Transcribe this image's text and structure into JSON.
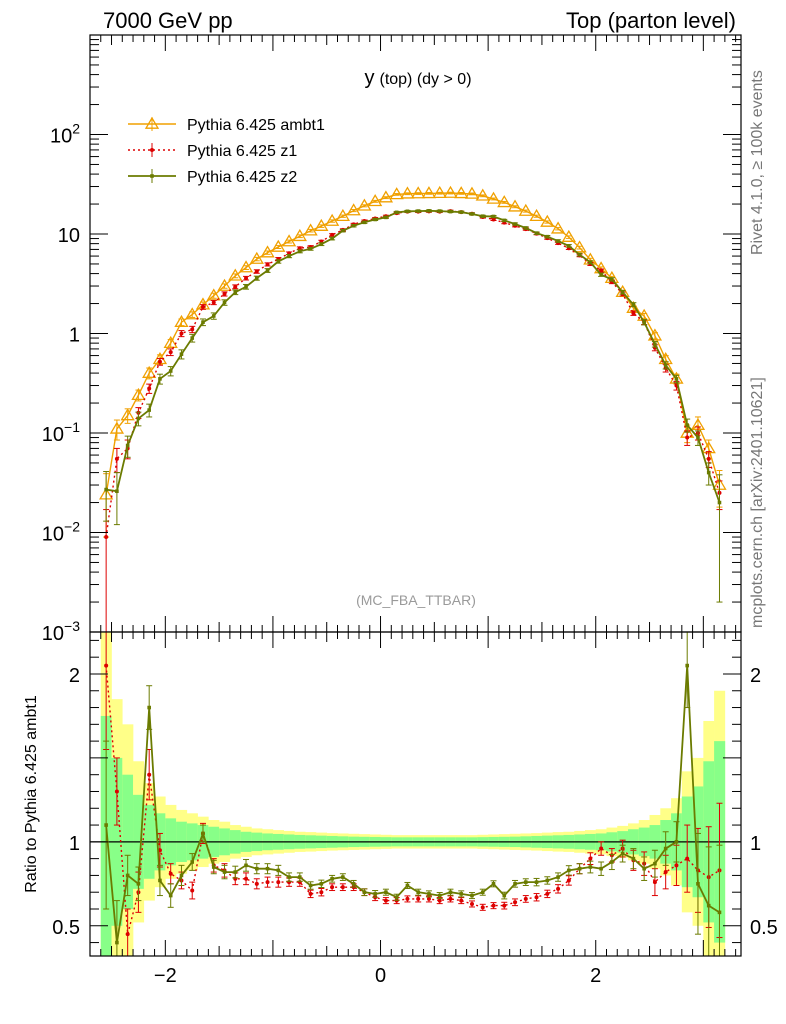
{
  "header": {
    "left": "7000 GeV pp",
    "right": "Top (parton level)"
  },
  "side": {
    "rivet": "Rivet 4.1.0, ≥ 100k events",
    "mcplots": "mcplots.cern.ch [arXiv:2401.10621]"
  },
  "colors": {
    "ambt1": "#f0a000",
    "z1": "#dd0000",
    "z2": "#6b7b00",
    "band_outer": "#ffff88",
    "band_inner": "#88ff88"
  },
  "chart_data": [
    {
      "type": "line",
      "panel": "main",
      "title": "y (top) (dy > 0)",
      "title_main": "y",
      "title_sub": "(top) (dy > 0)",
      "watermark": "(MC_FBA_TTBAR)",
      "xlabel": "",
      "ylabel": "",
      "yscale": "log",
      "xlim": [
        -2.7,
        3.35
      ],
      "ylim": [
        0.001,
        1000
      ],
      "yticks": [
        {
          "value": 0.001,
          "base": "10",
          "exp": "−3"
        },
        {
          "value": 0.01,
          "base": "10",
          "exp": "−2"
        },
        {
          "value": 0.1,
          "base": "10",
          "exp": "−1"
        },
        {
          "value": 1,
          "base": "1",
          "exp": ""
        },
        {
          "value": 10,
          "base": "10",
          "exp": ""
        },
        {
          "value": 100,
          "base": "10",
          "exp": "2"
        }
      ],
      "legend": [
        "Pythia 6.425 ambt1",
        "Pythia 6.425 z1",
        "Pythia 6.425 z2"
      ],
      "legend_position": "top-left",
      "x": [
        -2.55,
        -2.45,
        -2.35,
        -2.25,
        -2.15,
        -2.05,
        -1.95,
        -1.85,
        -1.75,
        -1.65,
        -1.55,
        -1.45,
        -1.35,
        -1.25,
        -1.15,
        -1.05,
        -0.95,
        -0.85,
        -0.75,
        -0.65,
        -0.55,
        -0.45,
        -0.35,
        -0.25,
        -0.15,
        -0.05,
        0.05,
        0.15,
        0.25,
        0.35,
        0.45,
        0.55,
        0.65,
        0.75,
        0.85,
        0.95,
        1.05,
        1.15,
        1.25,
        1.35,
        1.45,
        1.55,
        1.65,
        1.75,
        1.85,
        1.95,
        2.05,
        2.15,
        2.25,
        2.35,
        2.45,
        2.55,
        2.65,
        2.75,
        2.85,
        2.95,
        3.05,
        3.15
      ],
      "series": [
        {
          "name": "Pythia 6.425 ambt1",
          "key": "ambt1",
          "values": [
            0.024,
            0.11,
            0.15,
            0.24,
            0.4,
            0.55,
            0.8,
            1.3,
            1.55,
            1.95,
            2.4,
            3.0,
            3.8,
            4.6,
            5.6,
            6.5,
            7.4,
            8.4,
            9.5,
            10.8,
            12.0,
            13.5,
            15.1,
            17.2,
            19.2,
            21.3,
            23.2,
            25.0,
            25.4,
            25.5,
            25.6,
            25.7,
            25.8,
            25.6,
            25.3,
            24.2,
            22.5,
            20.8,
            18.8,
            17.0,
            15.1,
            13.2,
            11.3,
            9.3,
            7.3,
            5.5,
            4.5,
            3.6,
            2.6,
            1.8,
            1.5,
            0.95,
            0.55,
            0.35,
            0.1,
            0.12,
            0.07,
            0.03
          ],
          "errors": [
            0.015,
            0.025,
            0.025,
            0.03,
            0.05,
            0.06,
            0.07,
            0.1,
            0.1,
            0.12,
            0.14,
            0.15,
            0.17,
            0.2,
            0.22,
            0.25,
            0.25,
            0.28,
            0.3,
            0.32,
            0.35,
            0.37,
            0.4,
            0.42,
            0.45,
            0.47,
            0.5,
            0.5,
            0.52,
            0.52,
            0.52,
            0.52,
            0.52,
            0.52,
            0.52,
            0.5,
            0.48,
            0.45,
            0.42,
            0.4,
            0.37,
            0.34,
            0.3,
            0.27,
            0.23,
            0.2,
            0.17,
            0.15,
            0.12,
            0.1,
            0.09,
            0.07,
            0.05,
            0.04,
            0.02,
            0.025,
            0.015,
            0.012
          ]
        },
        {
          "name": "Pythia 6.425 z1",
          "key": "z1",
          "values": [
            0.009,
            0.055,
            0.07,
            0.16,
            0.28,
            0.52,
            0.65,
            1.0,
            1.1,
            1.85,
            2.05,
            2.5,
            2.95,
            3.6,
            4.2,
            4.95,
            5.6,
            6.4,
            7.2,
            7.4,
            8.4,
            9.8,
            11.0,
            12.5,
            13.5,
            14.3,
            15.1,
            16.2,
            16.8,
            16.8,
            16.9,
            16.8,
            17.0,
            16.6,
            16.0,
            14.8,
            14.0,
            13.0,
            12.1,
            11.2,
            10.1,
            9.1,
            8.1,
            7.2,
            6.1,
            5.0,
            4.3,
            3.3,
            2.5,
            1.6,
            1.3,
            0.72,
            0.45,
            0.3,
            0.09,
            0.1,
            0.055,
            0.025
          ],
          "errors": [
            0.008,
            0.015,
            0.015,
            0.02,
            0.03,
            0.04,
            0.05,
            0.07,
            0.08,
            0.1,
            0.1,
            0.12,
            0.13,
            0.15,
            0.17,
            0.18,
            0.2,
            0.2,
            0.22,
            0.22,
            0.25,
            0.27,
            0.28,
            0.3,
            0.32,
            0.33,
            0.34,
            0.35,
            0.36,
            0.36,
            0.36,
            0.36,
            0.36,
            0.36,
            0.35,
            0.34,
            0.33,
            0.32,
            0.3,
            0.28,
            0.27,
            0.25,
            0.23,
            0.21,
            0.19,
            0.17,
            0.15,
            0.13,
            0.11,
            0.08,
            0.07,
            0.05,
            0.04,
            0.03,
            0.015,
            0.015,
            0.01,
            0.008
          ]
        },
        {
          "name": "Pythia 6.425 z2",
          "key": "z2",
          "values": [
            0.027,
            0.026,
            0.075,
            0.14,
            0.17,
            0.35,
            0.42,
            0.62,
            0.9,
            1.3,
            1.5,
            2.05,
            2.6,
            2.95,
            3.6,
            4.3,
            5.3,
            6.0,
            6.7,
            7.1,
            7.9,
            9.0,
            10.8,
            12.1,
            13.1,
            14.0,
            14.7,
            16.5,
            16.9,
            17.0,
            17.1,
            17.0,
            16.8,
            16.6,
            15.9,
            15.1,
            15.0,
            13.7,
            12.6,
            11.5,
            10.2,
            9.4,
            8.5,
            7.6,
            6.2,
            5.2,
            3.9,
            3.5,
            2.6,
            1.95,
            1.3,
            0.78,
            0.48,
            0.35,
            0.12,
            0.09,
            0.04,
            0.02
          ],
          "errors": [
            0.014,
            0.014,
            0.018,
            0.022,
            0.025,
            0.04,
            0.045,
            0.065,
            0.08,
            0.1,
            0.11,
            0.13,
            0.14,
            0.16,
            0.17,
            0.19,
            0.21,
            0.22,
            0.23,
            0.23,
            0.25,
            0.27,
            0.29,
            0.31,
            0.32,
            0.33,
            0.34,
            0.36,
            0.36,
            0.36,
            0.36,
            0.36,
            0.36,
            0.36,
            0.35,
            0.34,
            0.34,
            0.32,
            0.31,
            0.29,
            0.28,
            0.26,
            0.24,
            0.22,
            0.2,
            0.18,
            0.15,
            0.14,
            0.11,
            0.09,
            0.08,
            0.05,
            0.04,
            0.03,
            0.018,
            0.015,
            0.01,
            0.018
          ]
        }
      ]
    },
    {
      "type": "line",
      "panel": "ratio",
      "title": "",
      "xlabel": "",
      "ylabel": "Ratio to Pythia 6.425 ambt1",
      "xlim": [
        -2.7,
        3.35
      ],
      "ylim": [
        0.32,
        2.25
      ],
      "xticks": [
        {
          "value": -2,
          "label": "−2"
        },
        {
          "value": 0,
          "label": "0"
        },
        {
          "value": 2,
          "label": "2"
        }
      ],
      "yticks": [
        {
          "value": 0.5,
          "label": "0.5"
        },
        {
          "value": 1,
          "label": "1"
        },
        {
          "value": 2,
          "label": "2"
        }
      ],
      "reference_line": 1,
      "band_outer_halfwidth": [
        1.3,
        0.85,
        0.7,
        0.48,
        0.35,
        0.27,
        0.22,
        0.19,
        0.17,
        0.15,
        0.13,
        0.12,
        0.1,
        0.09,
        0.08,
        0.075,
        0.07,
        0.065,
        0.06,
        0.058,
        0.055,
        0.052,
        0.05,
        0.048,
        0.046,
        0.044,
        0.042,
        0.04,
        0.04,
        0.04,
        0.04,
        0.04,
        0.04,
        0.04,
        0.04,
        0.042,
        0.044,
        0.046,
        0.048,
        0.05,
        0.052,
        0.055,
        0.058,
        0.06,
        0.065,
        0.07,
        0.075,
        0.085,
        0.095,
        0.11,
        0.13,
        0.16,
        0.2,
        0.26,
        0.42,
        0.5,
        0.72,
        0.9
      ],
      "band_inner_halfwidth": [
        0.75,
        0.5,
        0.4,
        0.28,
        0.22,
        0.17,
        0.14,
        0.12,
        0.11,
        0.1,
        0.09,
        0.08,
        0.07,
        0.06,
        0.055,
        0.05,
        0.047,
        0.044,
        0.041,
        0.039,
        0.037,
        0.035,
        0.033,
        0.031,
        0.03,
        0.029,
        0.028,
        0.027,
        0.027,
        0.027,
        0.027,
        0.027,
        0.027,
        0.027,
        0.027,
        0.028,
        0.029,
        0.03,
        0.031,
        0.033,
        0.035,
        0.037,
        0.039,
        0.041,
        0.044,
        0.047,
        0.05,
        0.057,
        0.064,
        0.075,
        0.085,
        0.1,
        0.13,
        0.17,
        0.27,
        0.33,
        0.48,
        0.6
      ],
      "series": [
        {
          "name": "Pythia 6.425 z1",
          "key": "z1",
          "values": [
            2.05,
            1.3,
            0.45,
            0.7,
            1.4,
            0.95,
            0.81,
            0.77,
            0.71,
            1.05,
            0.86,
            0.83,
            0.78,
            0.78,
            0.75,
            0.76,
            0.76,
            0.76,
            0.76,
            0.69,
            0.7,
            0.73,
            0.73,
            0.73,
            0.7,
            0.67,
            0.65,
            0.65,
            0.66,
            0.66,
            0.66,
            0.65,
            0.66,
            0.65,
            0.63,
            0.61,
            0.62,
            0.62,
            0.64,
            0.66,
            0.67,
            0.69,
            0.72,
            0.77,
            0.84,
            0.9,
            0.96,
            0.92,
            0.96,
            0.89,
            0.87,
            0.76,
            0.82,
            0.86,
            0.9,
            0.83,
            0.79,
            0.83
          ],
          "errors": [
            0.5,
            0.2,
            0.15,
            0.12,
            0.15,
            0.1,
            0.06,
            0.05,
            0.05,
            0.06,
            0.04,
            0.04,
            0.035,
            0.035,
            0.03,
            0.03,
            0.03,
            0.025,
            0.025,
            0.022,
            0.022,
            0.02,
            0.02,
            0.02,
            0.02,
            0.02,
            0.018,
            0.018,
            0.018,
            0.018,
            0.018,
            0.018,
            0.018,
            0.018,
            0.018,
            0.018,
            0.018,
            0.02,
            0.02,
            0.02,
            0.022,
            0.022,
            0.025,
            0.028,
            0.03,
            0.035,
            0.04,
            0.04,
            0.05,
            0.06,
            0.07,
            0.08,
            0.1,
            0.12,
            0.2,
            0.25,
            0.3,
            0.4
          ]
        },
        {
          "name": "Pythia 6.425 z2",
          "key": "z2",
          "values": [
            1.1,
            0.4,
            0.8,
            0.75,
            1.8,
            0.77,
            0.68,
            0.8,
            0.88,
            1.05,
            0.85,
            0.82,
            0.82,
            0.86,
            0.84,
            0.84,
            0.83,
            0.79,
            0.79,
            0.74,
            0.75,
            0.78,
            0.79,
            0.75,
            0.7,
            0.69,
            0.7,
            0.67,
            0.74,
            0.7,
            0.69,
            0.68,
            0.7,
            0.69,
            0.68,
            0.7,
            0.75,
            0.68,
            0.75,
            0.76,
            0.76,
            0.77,
            0.79,
            0.83,
            0.84,
            0.85,
            0.84,
            0.88,
            0.93,
            0.9,
            0.84,
            0.87,
            0.96,
            1.0,
            2.05,
            0.75,
            0.62,
            0.58
          ],
          "errors": [
            0.5,
            0.25,
            0.12,
            0.1,
            0.13,
            0.09,
            0.07,
            0.06,
            0.05,
            0.05,
            0.04,
            0.04,
            0.035,
            0.035,
            0.03,
            0.03,
            0.03,
            0.025,
            0.025,
            0.022,
            0.022,
            0.02,
            0.02,
            0.02,
            0.02,
            0.02,
            0.018,
            0.018,
            0.018,
            0.018,
            0.018,
            0.018,
            0.018,
            0.018,
            0.018,
            0.018,
            0.018,
            0.02,
            0.02,
            0.02,
            0.022,
            0.022,
            0.025,
            0.028,
            0.03,
            0.035,
            0.04,
            0.045,
            0.05,
            0.06,
            0.07,
            0.08,
            0.1,
            0.12,
            0.25,
            0.3,
            0.35,
            0.4
          ]
        }
      ]
    }
  ]
}
